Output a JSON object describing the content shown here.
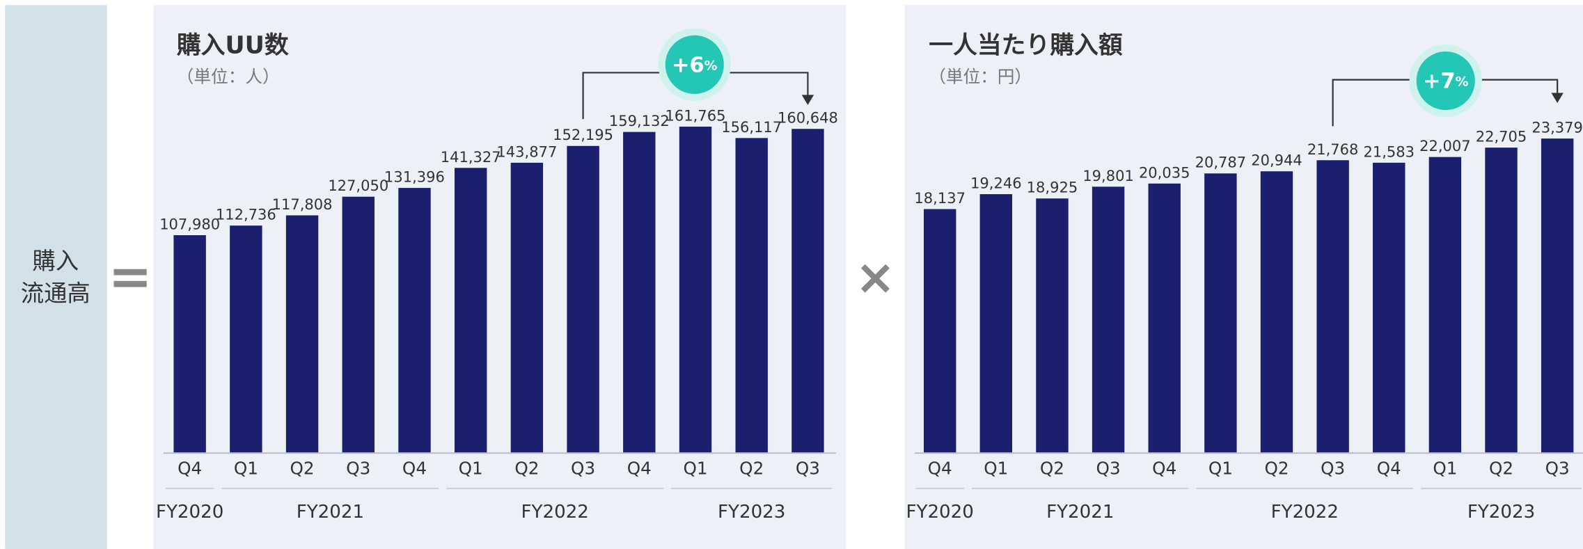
{
  "left_label": [
    "購入",
    "流通高"
  ],
  "operators": [
    "=",
    "×"
  ],
  "chart_data": [
    {
      "type": "bar",
      "title": "購入UU数",
      "subtitle": "（単位：人）",
      "categories": [
        "Q4",
        "Q1",
        "Q2",
        "Q3",
        "Q4",
        "Q1",
        "Q2",
        "Q3",
        "Q4",
        "Q1",
        "Q2",
        "Q3"
      ],
      "groups": [
        {
          "label": "FY2020",
          "span": 1
        },
        {
          "label": "FY2021",
          "span": 4
        },
        {
          "label": "FY2022",
          "span": 4
        },
        {
          "label": "FY2023",
          "span": 3
        }
      ],
      "values": [
        107980,
        112736,
        117808,
        127050,
        131396,
        141327,
        143877,
        152195,
        159132,
        161765,
        156117,
        160648
      ],
      "value_labels": [
        "107,980",
        "112,736",
        "117,808",
        "127,050",
        "131,396",
        "141,327",
        "143,877",
        "152,195",
        "159,132",
        "161,765",
        "156,117",
        "160,648"
      ],
      "color": "#1a1f6e",
      "ylim": [
        0,
        200000
      ],
      "growth_label": "+6",
      "growth_unit": "%"
    },
    {
      "type": "bar",
      "title": "一人当たり購入額",
      "subtitle": "（単位：円）",
      "categories": [
        "Q4",
        "Q1",
        "Q2",
        "Q3",
        "Q4",
        "Q1",
        "Q2",
        "Q3",
        "Q4",
        "Q1",
        "Q2",
        "Q3"
      ],
      "groups": [
        {
          "label": "FY2020",
          "span": 1
        },
        {
          "label": "FY2021",
          "span": 4
        },
        {
          "label": "FY2022",
          "span": 4
        },
        {
          "label": "FY2023",
          "span": 3
        }
      ],
      "values": [
        18137,
        19246,
        18925,
        19801,
        20035,
        20787,
        20944,
        21768,
        21583,
        22007,
        22705,
        23379
      ],
      "value_labels": [
        "18,137",
        "19,246",
        "18,925",
        "19,801",
        "20,035",
        "20,787",
        "20,944",
        "21,768",
        "21,583",
        "22,007",
        "22,705",
        "23,379"
      ],
      "color": "#1a1f6e",
      "ylim": [
        0,
        30000
      ],
      "growth_label": "+7",
      "growth_unit": "%"
    }
  ]
}
